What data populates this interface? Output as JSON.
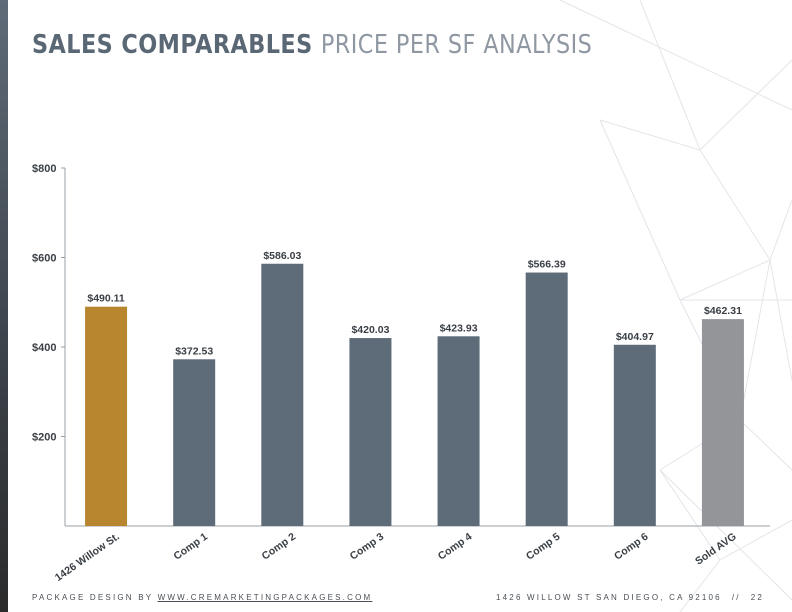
{
  "title": {
    "bold": "SALES COMPARABLES",
    "light": "PRICE PER SF ANALYSIS"
  },
  "chart_data": {
    "type": "bar",
    "categories": [
      "1426 Willow St.",
      "Comp 1",
      "Comp 2",
      "Comp 3",
      "Comp 4",
      "Comp 5",
      "Comp 6",
      "Sold AVG"
    ],
    "values": [
      490.11,
      372.53,
      586.03,
      420.03,
      423.93,
      566.39,
      404.97,
      462.31
    ],
    "value_labels": [
      "$490.11",
      "$372.53",
      "$586.03",
      "$420.03",
      "$423.93",
      "$566.39",
      "$404.97",
      "$462.31"
    ],
    "bar_colors": [
      "#b8862e",
      "#5e6b78",
      "#5e6b78",
      "#5e6b78",
      "#5e6b78",
      "#5e6b78",
      "#5e6b78",
      "#939598"
    ],
    "y_ticks": [
      200,
      400,
      600,
      800
    ],
    "y_tick_labels": [
      "$200",
      "$400",
      "$600",
      "$800"
    ],
    "ylim": [
      0,
      800
    ],
    "grid": false,
    "xlabel": "",
    "ylabel": ""
  },
  "footer": {
    "left_prefix": "PACKAGE DESIGN BY",
    "left_link": "WWW.CREMARKETINGPACKAGES.COM",
    "address": "1426 WILLOW ST SAN DIEGO, CA 92106",
    "separator": "//",
    "page_number": "22"
  },
  "colors": {
    "accent": "#b8862e",
    "bar": "#5e6b78",
    "average": "#939598",
    "title": "#5a6775"
  }
}
